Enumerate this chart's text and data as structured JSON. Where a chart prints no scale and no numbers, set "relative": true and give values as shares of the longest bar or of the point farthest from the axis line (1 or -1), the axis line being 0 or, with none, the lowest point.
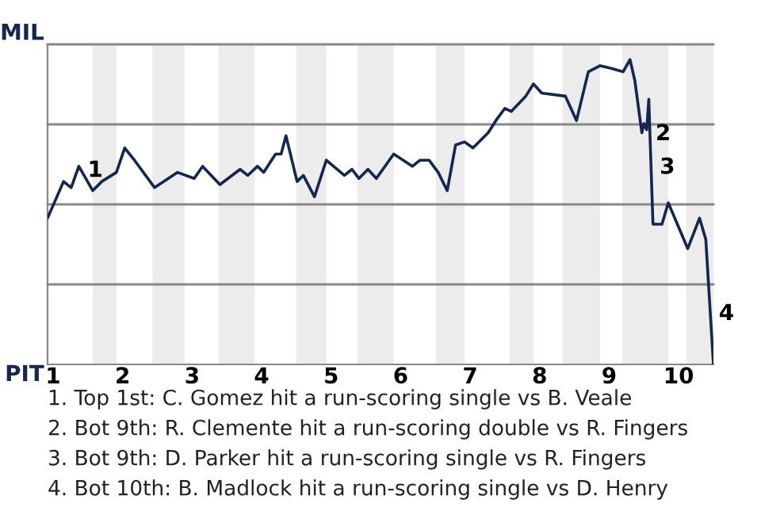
{
  "chart_data": {
    "type": "line",
    "relative": true,
    "x": [
      0.92,
      1.15,
      1.26,
      1.37,
      1.57,
      1.7,
      1.91,
      2.03,
      2.17,
      2.46,
      2.79,
      3.03,
      3.15,
      3.4,
      3.69,
      3.8,
      3.94,
      4.03,
      4.2,
      4.28,
      4.35,
      4.51,
      4.6,
      4.76,
      4.93,
      5.19,
      5.3,
      5.4,
      5.53,
      5.65,
      5.9,
      6.17,
      6.28,
      6.41,
      6.54,
      6.67,
      6.79,
      6.92,
      7.04,
      7.26,
      7.37,
      7.5,
      7.59,
      7.8,
      7.91,
      8.03,
      8.37,
      8.53,
      8.7,
      8.87,
      9.05,
      9.2,
      9.3,
      9.37,
      9.47,
      9.5,
      9.54,
      9.57,
      9.63,
      9.76,
      9.85,
      10.13,
      10.3,
      10.39,
      10.5
    ],
    "series": [
      {
        "color": "#13274f",
        "values": [
          0.48,
          0.6,
          0.58,
          0.65,
          0.57,
          0.6,
          0.63,
          0.71,
          0.67,
          0.58,
          0.63,
          0.61,
          0.65,
          0.59,
          0.64,
          0.62,
          0.65,
          0.63,
          0.69,
          0.69,
          0.75,
          0.6,
          0.62,
          0.55,
          0.67,
          0.62,
          0.64,
          0.61,
          0.64,
          0.61,
          0.69,
          0.65,
          0.67,
          0.67,
          0.63,
          0.57,
          0.72,
          0.73,
          0.71,
          0.76,
          0.8,
          0.84,
          0.83,
          0.88,
          0.92,
          0.89,
          0.88,
          0.8,
          0.96,
          0.98,
          0.97,
          0.96,
          1,
          0.93,
          0.76,
          0.79,
          0.77,
          0.87,
          0.46,
          0.46,
          0.53,
          0.38,
          0.48,
          0.41,
          0
        ]
      }
    ],
    "xlim": [
      0.92,
      10.5
    ],
    "xticks": [
      1,
      2,
      3,
      4,
      5,
      6,
      7,
      8,
      9,
      10
    ],
    "grid": "y",
    "line_style": "solid",
    "marker": "none",
    "bands": [
      {
        "axis": "x",
        "from": 1.57,
        "to": 1.91,
        "color": "#ececec"
      },
      {
        "axis": "x",
        "from": 2.43,
        "to": 2.89,
        "color": "#ececec"
      },
      {
        "axis": "x",
        "from": 3.38,
        "to": 3.9,
        "color": "#ececec"
      },
      {
        "axis": "x",
        "from": 4.5,
        "to": 4.93,
        "color": "#ececec"
      },
      {
        "axis": "x",
        "from": 5.38,
        "to": 5.9,
        "color": "#ececec"
      },
      {
        "axis": "x",
        "from": 6.51,
        "to": 6.92,
        "color": "#ececec"
      },
      {
        "axis": "x",
        "from": 7.57,
        "to": 7.91,
        "color": "#ececec"
      },
      {
        "axis": "x",
        "from": 8.33,
        "to": 8.87,
        "color": "#ececec"
      },
      {
        "axis": "x",
        "from": 9.19,
        "to": 9.85,
        "color": "#ececec"
      },
      {
        "axis": "x",
        "from": 10.11,
        "to": 10.5,
        "color": "#ececec"
      }
    ],
    "annotations": [
      "MIL",
      "PIT",
      {
        "text": "1",
        "x": 1.37,
        "y": 0.65
      },
      {
        "text": "2",
        "x": 9.54,
        "y": 0.77
      },
      {
        "text": "3",
        "x": 9.6,
        "y": 0.66
      },
      {
        "text": "4",
        "x": 10.45,
        "y": 0.18
      },
      "1. Top 1st: C. Gomez hit a run-scoring single vs B. Veale",
      "2. Bot 9th: R. Clemente hit a run-scoring double vs R. Fingers",
      "3. Bot 9th: D. Parker hit a run-scoring single vs R. Fingers",
      "4. Bot 10th: B. Madlock hit a run-scoring single vs D. Henry"
    ]
  }
}
